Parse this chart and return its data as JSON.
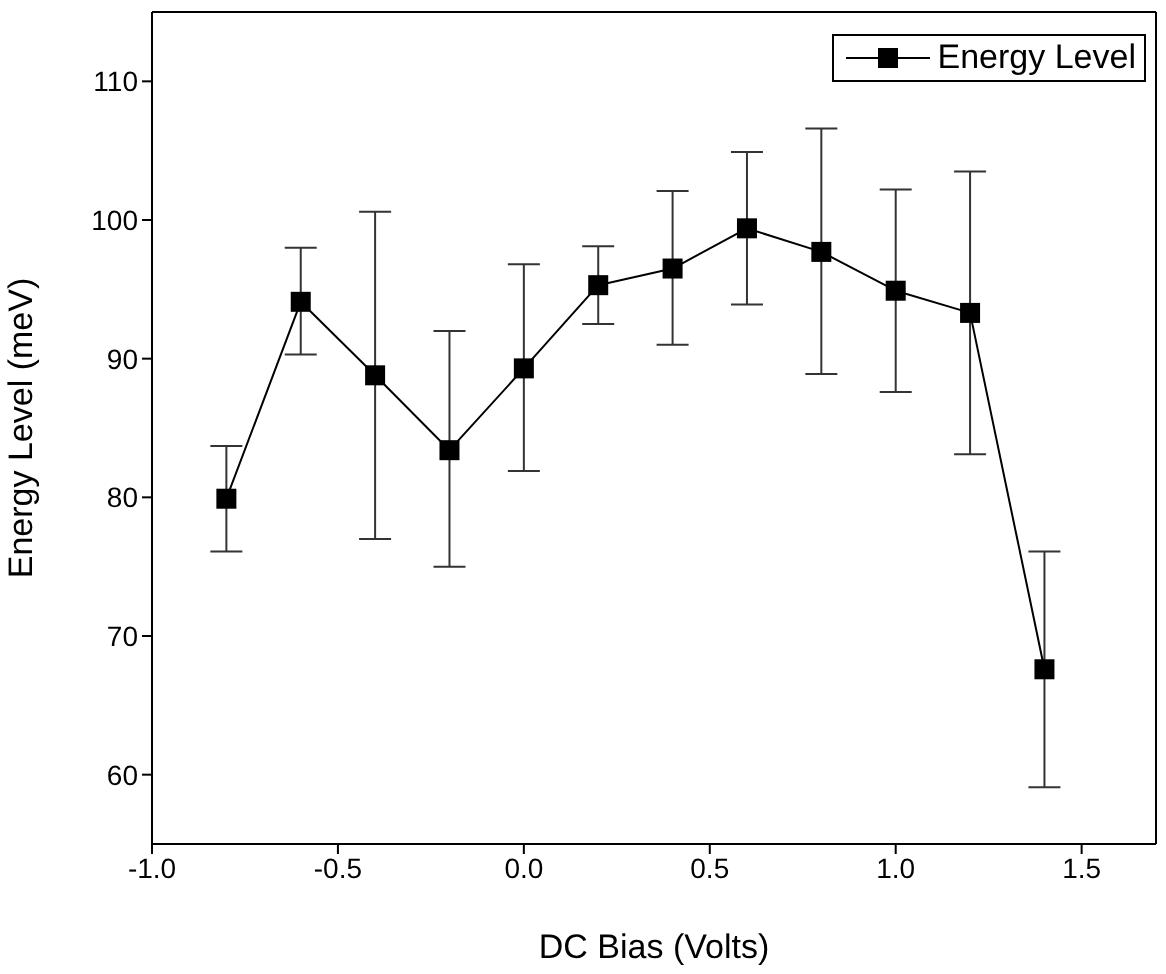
{
  "chart_data": {
    "type": "line",
    "xlabel": "DC Bias (Volts)",
    "ylabel": "Energy Level (meV)",
    "x": [
      -0.8,
      -0.6,
      -0.4,
      -0.2,
      0.0,
      0.2,
      0.4,
      0.6,
      0.8,
      1.0,
      1.2,
      1.4
    ],
    "series": [
      {
        "name": "Energy Level",
        "color": "#000000",
        "values": [
          79.9,
          94.1,
          88.8,
          83.4,
          89.3,
          95.3,
          96.5,
          99.4,
          97.7,
          94.9,
          93.3,
          67.6
        ],
        "errors": [
          [
            76.1,
            83.7
          ],
          [
            90.3,
            98.0
          ],
          [
            77.0,
            100.6
          ],
          [
            75.0,
            92.0
          ],
          [
            81.9,
            96.8
          ],
          [
            92.5,
            98.1
          ],
          [
            91.0,
            102.1
          ],
          [
            93.9,
            104.9
          ],
          [
            88.9,
            106.6
          ],
          [
            87.6,
            102.2
          ],
          [
            83.1,
            103.5
          ],
          [
            59.1,
            76.1
          ]
        ]
      }
    ],
    "xlim": [
      -1.0,
      1.7
    ],
    "xticks": [
      {
        "value": -1.0,
        "label": "-1.0"
      },
      {
        "value": -0.5,
        "label": "-0.5"
      },
      {
        "value": 0.0,
        "label": "0.0"
      },
      {
        "value": 0.5,
        "label": "0.5"
      },
      {
        "value": 1.0,
        "label": "1.0"
      },
      {
        "value": 1.5,
        "label": "1.5"
      }
    ],
    "ylim": [
      55,
      115
    ],
    "yticks": [
      60,
      70,
      80,
      90,
      100,
      110
    ],
    "grid": false,
    "legend": "top right",
    "marker": "square",
    "line_style": "solid"
  }
}
